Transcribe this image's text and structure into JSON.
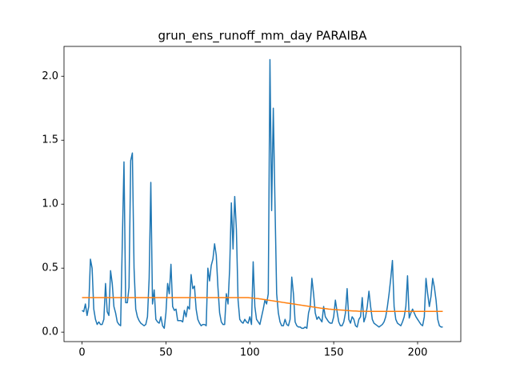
{
  "chart_data": {
    "type": "line",
    "title": "grun_ens_runoff_mm_day PARAIBA",
    "x": [
      0,
      1,
      2,
      3,
      4,
      5,
      6,
      7,
      8,
      9,
      10,
      11,
      12,
      13,
      14,
      15,
      16,
      17,
      18,
      19,
      20,
      21,
      22,
      23,
      24,
      25,
      26,
      27,
      28,
      29,
      30,
      31,
      32,
      33,
      34,
      35,
      36,
      37,
      38,
      39,
      40,
      41,
      42,
      43,
      44,
      45,
      46,
      47,
      48,
      49,
      50,
      51,
      52,
      53,
      54,
      55,
      56,
      57,
      58,
      59,
      60,
      61,
      62,
      63,
      64,
      65,
      66,
      67,
      68,
      69,
      70,
      71,
      72,
      73,
      74,
      75,
      76,
      77,
      78,
      79,
      80,
      81,
      82,
      83,
      84,
      85,
      86,
      87,
      88,
      89,
      90,
      91,
      92,
      93,
      94,
      95,
      96,
      97,
      98,
      99,
      100,
      101,
      102,
      103,
      104,
      105,
      106,
      107,
      108,
      109,
      110,
      111,
      112,
      113,
      114,
      115,
      116,
      117,
      118,
      119,
      120,
      121,
      122,
      123,
      124,
      125,
      126,
      127,
      128,
      129,
      130,
      131,
      132,
      133,
      134,
      135,
      136,
      137,
      138,
      139,
      140,
      141,
      142,
      143,
      144,
      145,
      146,
      147,
      148,
      149,
      150,
      151,
      152,
      153,
      154,
      155,
      156,
      157,
      158,
      159,
      160,
      161,
      162,
      163,
      164,
      165,
      166,
      167,
      168,
      169,
      170,
      171,
      172,
      173,
      174,
      175,
      176,
      177,
      178,
      179,
      180,
      181,
      182,
      183,
      184,
      185,
      186,
      187,
      188,
      189,
      190,
      191,
      192,
      193,
      194,
      195,
      196,
      197,
      198,
      199,
      200,
      201,
      202,
      203,
      204,
      205,
      206,
      207,
      208,
      209,
      210,
      211,
      212,
      213,
      214,
      215
    ],
    "series": [
      {
        "color": "#1f77b4",
        "values": [
          0.17,
          0.16,
          0.22,
          0.13,
          0.2,
          0.57,
          0.5,
          0.18,
          0.1,
          0.06,
          0.08,
          0.06,
          0.06,
          0.1,
          0.38,
          0.16,
          0.13,
          0.48,
          0.38,
          0.2,
          0.15,
          0.08,
          0.06,
          0.05,
          0.7,
          1.33,
          0.23,
          0.23,
          0.35,
          1.34,
          1.4,
          0.5,
          0.18,
          0.12,
          0.09,
          0.07,
          0.06,
          0.05,
          0.06,
          0.12,
          0.42,
          1.17,
          0.22,
          0.33,
          0.1,
          0.08,
          0.07,
          0.12,
          0.05,
          0.03,
          0.15,
          0.38,
          0.3,
          0.53,
          0.2,
          0.17,
          0.18,
          0.09,
          0.09,
          0.09,
          0.08,
          0.17,
          0.12,
          0.2,
          0.18,
          0.45,
          0.34,
          0.36,
          0.18,
          0.1,
          0.07,
          0.05,
          0.06,
          0.06,
          0.05,
          0.5,
          0.4,
          0.52,
          0.57,
          0.69,
          0.6,
          0.35,
          0.15,
          0.08,
          0.06,
          0.06,
          0.3,
          0.22,
          0.5,
          1.01,
          0.65,
          1.06,
          0.8,
          0.25,
          0.1,
          0.08,
          0.07,
          0.1,
          0.08,
          0.07,
          0.12,
          0.06,
          0.55,
          0.2,
          0.1,
          0.08,
          0.06,
          0.12,
          0.18,
          0.25,
          0.22,
          0.3,
          2.13,
          0.95,
          1.75,
          1.0,
          0.3,
          0.15,
          0.08,
          0.05,
          0.05,
          0.1,
          0.06,
          0.05,
          0.1,
          0.43,
          0.3,
          0.08,
          0.05,
          0.04,
          0.04,
          0.03,
          0.03,
          0.04,
          0.03,
          0.15,
          0.2,
          0.42,
          0.3,
          0.15,
          0.1,
          0.12,
          0.1,
          0.08,
          0.2,
          0.12,
          0.1,
          0.08,
          0.07,
          0.07,
          0.12,
          0.25,
          0.16,
          0.08,
          0.05,
          0.05,
          0.08,
          0.15,
          0.34,
          0.1,
          0.07,
          0.12,
          0.1,
          0.05,
          0.04,
          0.1,
          0.12,
          0.27,
          0.08,
          0.12,
          0.2,
          0.32,
          0.2,
          0.1,
          0.07,
          0.06,
          0.05,
          0.04,
          0.05,
          0.06,
          0.08,
          0.12,
          0.2,
          0.3,
          0.42,
          0.56,
          0.2,
          0.1,
          0.07,
          0.06,
          0.05,
          0.08,
          0.12,
          0.2,
          0.44,
          0.11,
          0.15,
          0.18,
          0.15,
          0.12,
          0.1,
          0.08,
          0.06,
          0.05,
          0.12,
          0.42,
          0.3,
          0.2,
          0.28,
          0.42,
          0.35,
          0.25,
          0.1,
          0.05,
          0.04,
          0.04
        ]
      },
      {
        "color": "#ff7f0e",
        "values": [
          0.27,
          0.27,
          0.27,
          0.27,
          0.27,
          0.27,
          0.27,
          0.27,
          0.27,
          0.27,
          0.27,
          0.27,
          0.27,
          0.27,
          0.27,
          0.27,
          0.27,
          0.27,
          0.27,
          0.27,
          0.27,
          0.27,
          0.27,
          0.27,
          0.27,
          0.27,
          0.27,
          0.27,
          0.27,
          0.27,
          0.27,
          0.27,
          0.27,
          0.27,
          0.27,
          0.27,
          0.27,
          0.27,
          0.27,
          0.27,
          0.27,
          0.27,
          0.27,
          0.27,
          0.27,
          0.27,
          0.27,
          0.27,
          0.27,
          0.27,
          0.27,
          0.27,
          0.27,
          0.27,
          0.27,
          0.27,
          0.27,
          0.27,
          0.27,
          0.27,
          0.27,
          0.27,
          0.27,
          0.27,
          0.27,
          0.27,
          0.27,
          0.27,
          0.27,
          0.27,
          0.27,
          0.27,
          0.27,
          0.27,
          0.27,
          0.27,
          0.27,
          0.27,
          0.27,
          0.27,
          0.27,
          0.27,
          0.27,
          0.27,
          0.27,
          0.27,
          0.27,
          0.27,
          0.27,
          0.27,
          0.27,
          0.27,
          0.27,
          0.27,
          0.27,
          0.27,
          0.27,
          0.27,
          0.27,
          0.27,
          0.268,
          0.267,
          0.266,
          0.264,
          0.263,
          0.262,
          0.26,
          0.258,
          0.256,
          0.254,
          0.252,
          0.25,
          0.248,
          0.246,
          0.244,
          0.242,
          0.24,
          0.238,
          0.236,
          0.234,
          0.232,
          0.23,
          0.228,
          0.226,
          0.224,
          0.222,
          0.22,
          0.218,
          0.216,
          0.214,
          0.212,
          0.21,
          0.208,
          0.206,
          0.204,
          0.202,
          0.2,
          0.198,
          0.196,
          0.194,
          0.192,
          0.19,
          0.188,
          0.186,
          0.185,
          0.184,
          0.182,
          0.18,
          0.179,
          0.178,
          0.177,
          0.176,
          0.175,
          0.174,
          0.173,
          0.172,
          0.171,
          0.17,
          0.169,
          0.168,
          0.167,
          0.166,
          0.165,
          0.165,
          0.164,
          0.163,
          0.163,
          0.163,
          0.163,
          0.163,
          0.162,
          0.162,
          0.162,
          0.162,
          0.162,
          0.162,
          0.162,
          0.162,
          0.162,
          0.162,
          0.162,
          0.162,
          0.162,
          0.162,
          0.162,
          0.162,
          0.162,
          0.162,
          0.162,
          0.162,
          0.162,
          0.162,
          0.162,
          0.162,
          0.162,
          0.162,
          0.162,
          0.162,
          0.162,
          0.162,
          0.162,
          0.162,
          0.162,
          0.162,
          0.162,
          0.162,
          0.162,
          0.162,
          0.162,
          0.162,
          0.162,
          0.162,
          0.162,
          0.162,
          0.162,
          0.162
        ]
      }
    ],
    "xlim": [
      -10.75,
      225.75
    ],
    "xticks": [
      0,
      50,
      100,
      150,
      200
    ],
    "ylim": [
      -0.074,
      2.233
    ],
    "yticks": [
      {
        "value": 0,
        "label": "0.0"
      },
      0.5,
      {
        "value": 1,
        "label": "1.0"
      },
      1.5,
      {
        "value": 2,
        "label": "2.0"
      }
    ]
  }
}
